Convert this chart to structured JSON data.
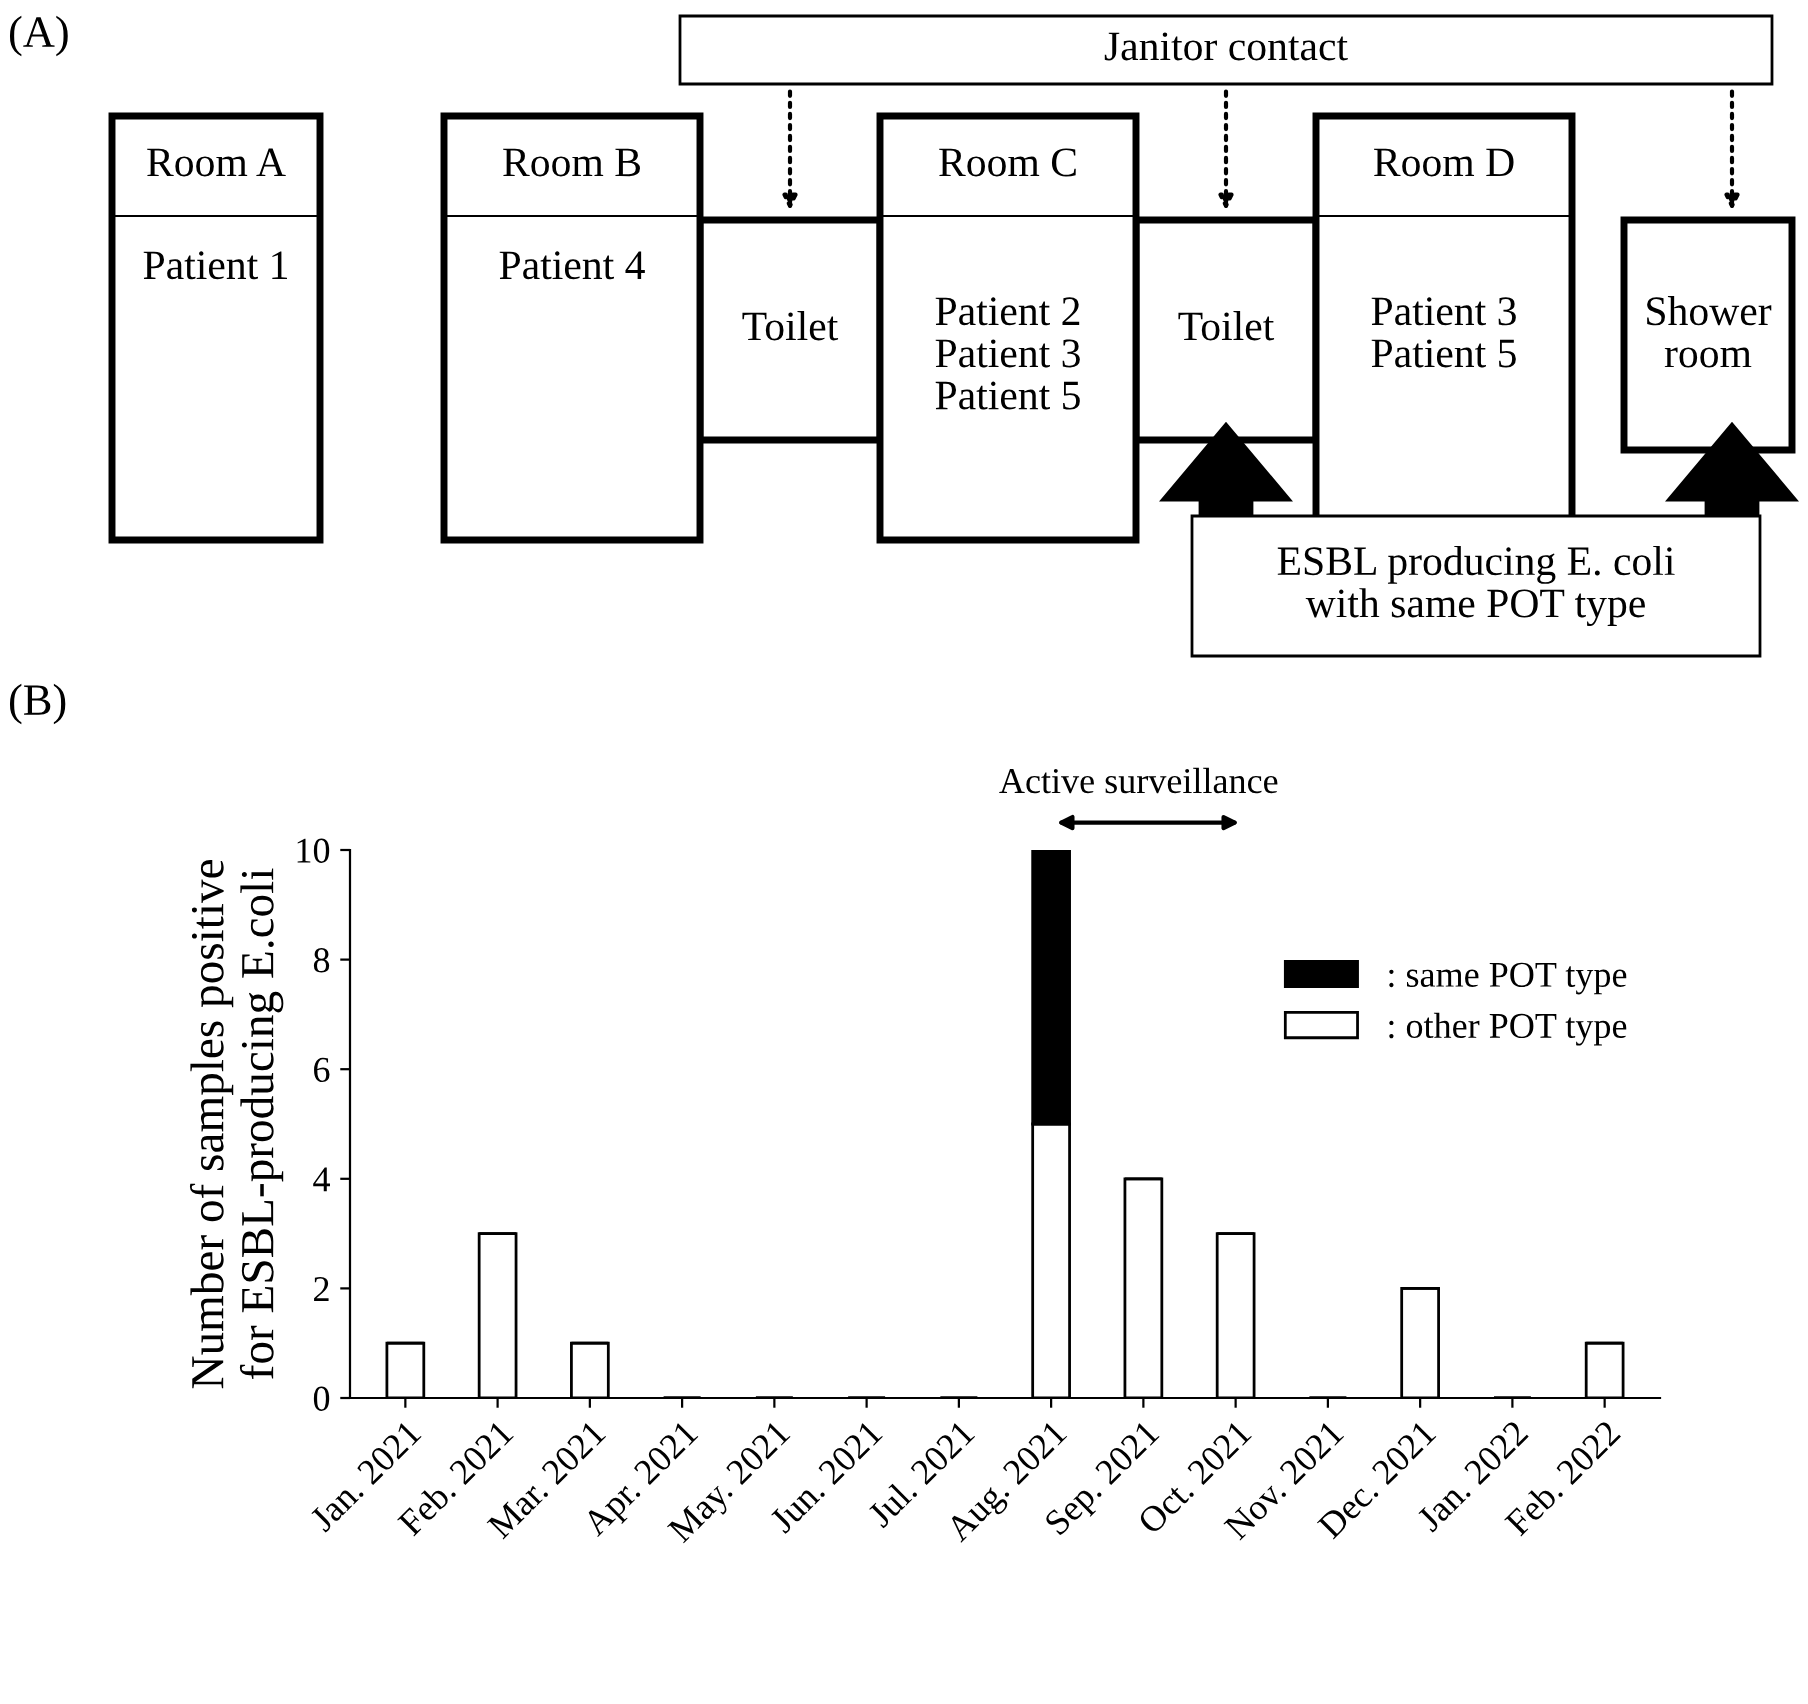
{
  "chart_data": [
    {
      "type": "other",
      "title": "(A)",
      "annotations": [
        "Janitor contact",
        "Room A",
        "Patient 1",
        "Room B",
        "Patient 4",
        "Toilet",
        "Room C",
        "Patient 2\nPatient 3\nPatient 5",
        "Toilet",
        "Room D",
        "Patient 3\nPatient 5",
        "Shower\nroom",
        "ESBL producing E. coli\nwith same POT type"
      ]
    },
    {
      "type": "bar",
      "title": "(B)",
      "ylabel": "Number of samples positive\nfor ESBL-producing E.coli",
      "categories": [
        "Jan. 2021",
        "Feb. 2021",
        "Mar. 2021",
        "Apr. 2021",
        "May. 2021",
        "Jun. 2021",
        "Jul. 2021",
        "Aug. 2021",
        "Sep. 2021",
        "Oct. 2021",
        "Nov. 2021",
        "Dec. 2021",
        "Jan. 2022",
        "Feb. 2022"
      ],
      "stacked": true,
      "series": [
        {
          "name": ": other POT type",
          "color": "#ffffff",
          "values": [
            1,
            3,
            1,
            0,
            0,
            0,
            0,
            5,
            4,
            3,
            0,
            2,
            0,
            1
          ]
        },
        {
          "name": ": same POT type",
          "color": "#000000",
          "values": [
            0,
            0,
            0,
            0,
            0,
            0,
            0,
            5,
            0,
            0,
            0,
            0,
            0,
            0
          ]
        }
      ],
      "ylim": [
        0,
        10
      ],
      "yticks": [
        0,
        2,
        4,
        6,
        8,
        10
      ],
      "grid": false,
      "legend": "right",
      "annotations": [
        "Active surveillance"
      ]
    }
  ]
}
